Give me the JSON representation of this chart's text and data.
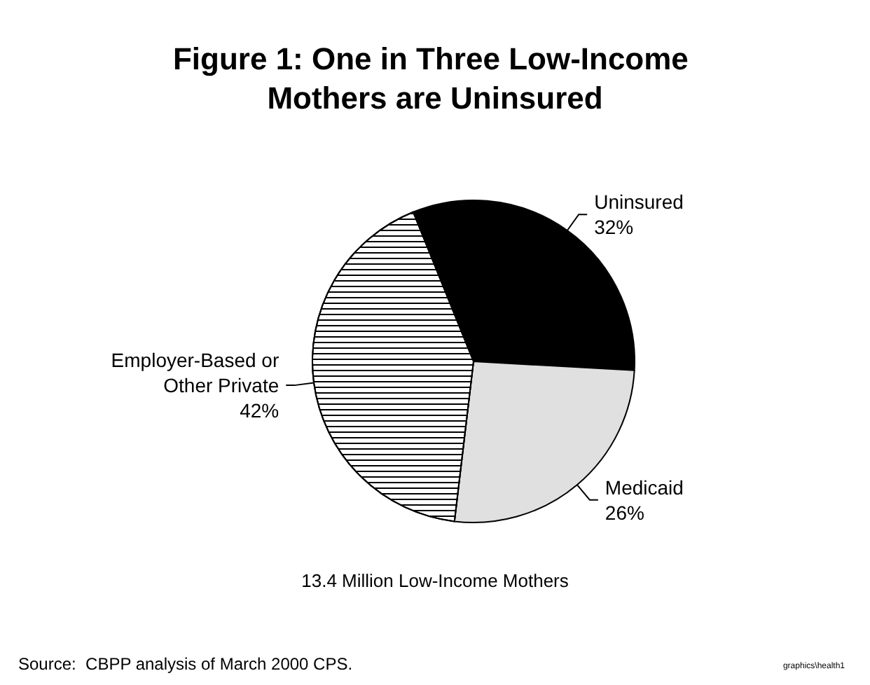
{
  "chart_data": {
    "type": "pie",
    "title": "Figure 1: One in Three Low-Income Mothers are Uninsured",
    "categories": [
      "Uninsured",
      "Medicaid",
      "Employer-Based or Other Private"
    ],
    "values": [
      32,
      26,
      42
    ],
    "value_labels": [
      "32%",
      "26%",
      "42%"
    ],
    "colors": [
      "#000000",
      "#e0e0e0",
      "#ffffff"
    ],
    "annotations": [
      "13.4 Million Low-Income Mothers",
      "Source:  CBPP analysis of March 2000 CPS.",
      "graphics\\health1"
    ],
    "legend": false
  }
}
